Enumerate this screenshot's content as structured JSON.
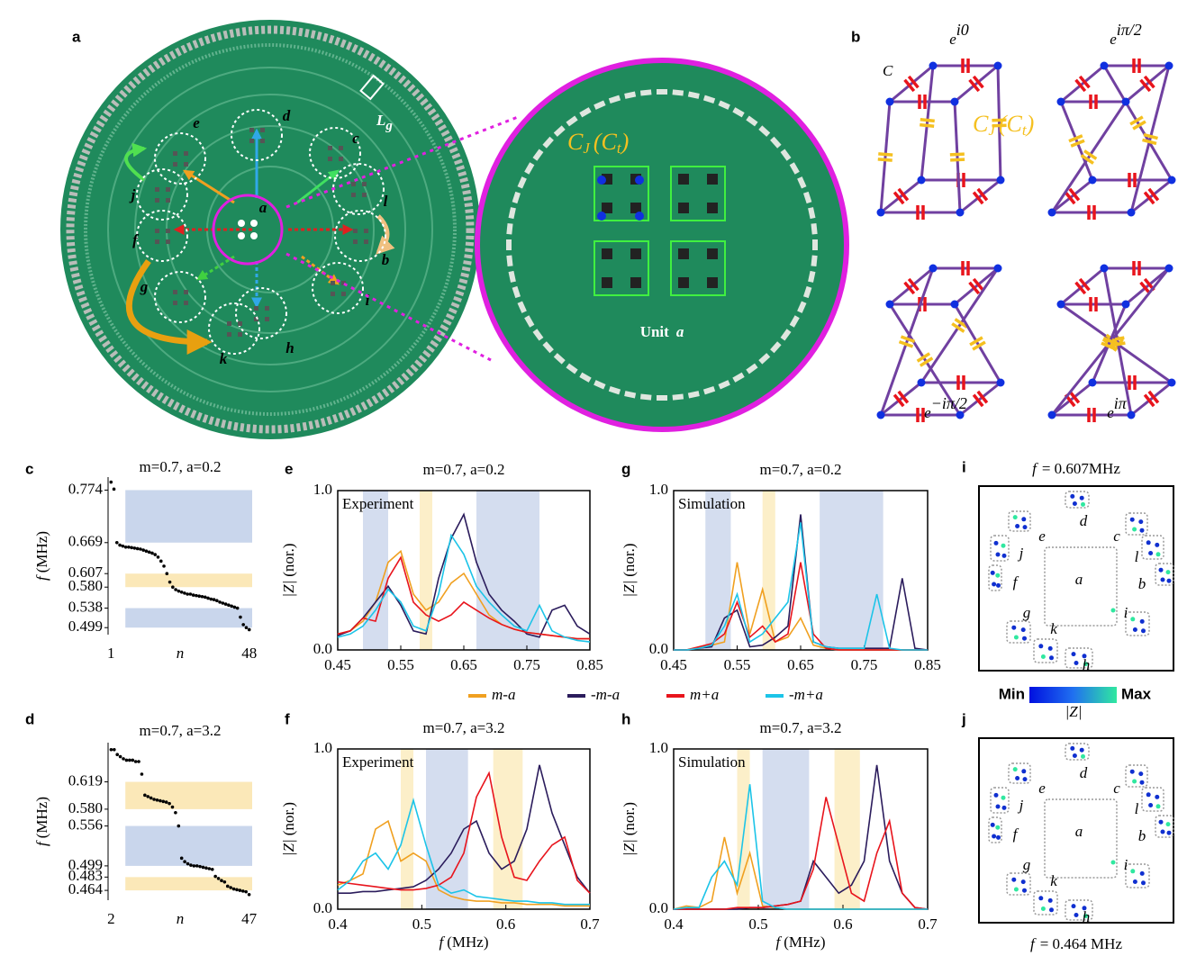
{
  "figure": {
    "panel_labels": [
      "a",
      "b",
      "i",
      "j"
    ],
    "a": {
      "units": [
        "a",
        "b",
        "c",
        "d",
        "e",
        "f",
        "g",
        "h",
        "i",
        "j",
        "k",
        "l"
      ],
      "Lg": [
        "L",
        "g"
      ],
      "unit_caption": [
        "Unit",
        "a"
      ]
    },
    "b": {
      "C": "C",
      "cap": [
        "C",
        "J",
        "(",
        "C",
        "t",
        ")"
      ],
      "phases": [
        [
          "e",
          "i0"
        ],
        [
          "e",
          "iπ/2"
        ],
        [
          "e",
          "−iπ/2"
        ],
        [
          "e",
          "iπ"
        ]
      ]
    },
    "i": {
      "title": [
        "f",
        "= 0.607MHz"
      ]
    },
    "j": {
      "title": [
        "f",
        "= 0.464 MHz"
      ]
    },
    "colorbar": {
      "min": "Min",
      "max": "Max",
      "label": "|Z|"
    }
  },
  "chart_data": [
    {
      "type": "scatter",
      "label": "c",
      "title": "m=0.7, a=0.2",
      "xlabel": "n",
      "ylabel": [
        "f",
        "(MHz)"
      ],
      "color": "#000000",
      "x": [
        1,
        2,
        3,
        4,
        5,
        6,
        7,
        8,
        9,
        10,
        11,
        12,
        13,
        14,
        15,
        16,
        17,
        18,
        19,
        20,
        21,
        22,
        23,
        24,
        25,
        26,
        27,
        28,
        29,
        30,
        31,
        32,
        33,
        34,
        35,
        36,
        37,
        38,
        39,
        40,
        41,
        42,
        43,
        44,
        45,
        46,
        47,
        48
      ],
      "values": [
        0.79,
        0.776,
        0.669,
        0.664,
        0.662,
        0.66,
        0.66,
        0.659,
        0.658,
        0.657,
        0.656,
        0.654,
        0.652,
        0.65,
        0.648,
        0.645,
        0.64,
        0.632,
        0.622,
        0.607,
        0.59,
        0.58,
        0.575,
        0.572,
        0.57,
        0.568,
        0.566,
        0.566,
        0.564,
        0.563,
        0.562,
        0.561,
        0.56,
        0.558,
        0.556,
        0.555,
        0.553,
        0.55,
        0.548,
        0.546,
        0.544,
        0.542,
        0.54,
        0.538,
        0.52,
        0.505,
        0.499,
        0.495
      ],
      "xlim": [
        0,
        49
      ],
      "xticks": [
        1,
        48
      ],
      "ylim": [
        0.485,
        0.8
      ],
      "yticks": [
        0.774,
        0.669,
        0.607,
        {
          "value": 0.58,
          "label": "0.580"
        },
        0.538,
        0.499
      ],
      "bands": [
        {
          "from": 0.669,
          "to": 0.774,
          "color": "#c9d6ec"
        },
        {
          "from": 0.58,
          "to": 0.607,
          "color": "#fbe8b8"
        },
        {
          "from": 0.499,
          "to": 0.538,
          "color": "#c9d6ec"
        }
      ]
    },
    {
      "type": "scatter",
      "label": "d",
      "title": "m=0.7, a=3.2",
      "xlabel": "n",
      "ylabel": [
        "f",
        "(MHz)"
      ],
      "color": "#000000",
      "x": [
        2,
        3,
        4,
        5,
        6,
        7,
        8,
        9,
        10,
        11,
        12,
        13,
        14,
        15,
        16,
        17,
        18,
        19,
        20,
        21,
        22,
        23,
        24,
        25,
        26,
        27,
        28,
        29,
        30,
        31,
        32,
        33,
        34,
        35,
        36,
        37,
        38,
        39,
        40,
        41,
        42,
        43,
        44,
        45,
        46,
        47
      ],
      "values": [
        0.665,
        0.665,
        0.658,
        0.655,
        0.652,
        0.65,
        0.65,
        0.65,
        0.648,
        0.648,
        0.63,
        0.6,
        0.598,
        0.596,
        0.594,
        0.593,
        0.592,
        0.591,
        0.59,
        0.588,
        0.583,
        0.575,
        0.556,
        0.51,
        0.505,
        0.502,
        0.5,
        0.499,
        0.499,
        0.498,
        0.497,
        0.496,
        0.495,
        0.494,
        0.484,
        0.481,
        0.478,
        0.476,
        0.47,
        0.468,
        0.466,
        0.465,
        0.464,
        0.463,
        0.462,
        0.458
      ],
      "xlim": [
        1,
        48
      ],
      "xticks": [
        2,
        47
      ],
      "ylim": [
        0.45,
        0.675
      ],
      "yticks": [
        0.619,
        {
          "value": 0.58,
          "label": "0.580"
        },
        0.556,
        0.499,
        0.483,
        0.464
      ],
      "bands": [
        {
          "from": 0.58,
          "to": 0.619,
          "color": "#fbe8b8"
        },
        {
          "from": 0.499,
          "to": 0.556,
          "color": "#c9d6ec"
        },
        {
          "from": 0.464,
          "to": 0.483,
          "color": "#fbe8b8"
        }
      ]
    },
    {
      "type": "line",
      "label": "e",
      "title": "m=0.7, a=0.2",
      "annotation": "Experiment",
      "ylabel": [
        "|Z|",
        "(nor.)"
      ],
      "x": [
        0.45,
        0.47,
        0.49,
        0.51,
        0.53,
        0.55,
        0.57,
        0.59,
        0.61,
        0.63,
        0.65,
        0.67,
        0.69,
        0.71,
        0.73,
        0.75,
        0.77,
        0.79,
        0.81,
        0.83,
        0.85
      ],
      "xlim": [
        0.45,
        0.85
      ],
      "xticks": [
        0.45,
        0.55,
        0.65,
        0.75,
        0.85
      ],
      "ylim": [
        0,
        1
      ],
      "yticks": [
        {
          "value": 0,
          "label": "0.0"
        },
        {
          "value": 1,
          "label": "1.0"
        }
      ],
      "bands": [
        {
          "from": 0.49,
          "to": 0.53,
          "color": "#d4ddef"
        },
        {
          "from": 0.58,
          "to": 0.6,
          "color": "#fcefc9"
        },
        {
          "from": 0.67,
          "to": 0.77,
          "color": "#d4ddef"
        }
      ],
      "series": [
        {
          "name": "m-a",
          "color": "#f0a020",
          "values": [
            0.1,
            0.12,
            0.18,
            0.3,
            0.55,
            0.62,
            0.35,
            0.25,
            0.3,
            0.42,
            0.48,
            0.35,
            0.22,
            0.16,
            0.13,
            0.11,
            0.1,
            0.09,
            0.08,
            0.07,
            0.07
          ]
        },
        {
          "name": "-m-a",
          "color": "#2b1c5c",
          "values": [
            0.09,
            0.12,
            0.2,
            0.3,
            0.4,
            0.28,
            0.12,
            0.1,
            0.45,
            0.7,
            0.85,
            0.55,
            0.35,
            0.25,
            0.18,
            0.1,
            0.08,
            0.25,
            0.28,
            0.15,
            0.1
          ]
        },
        {
          "name": "m+a",
          "color": "#e8141c",
          "values": [
            0.1,
            0.12,
            0.2,
            0.18,
            0.45,
            0.58,
            0.3,
            0.22,
            0.18,
            0.22,
            0.3,
            0.25,
            0.2,
            0.16,
            0.13,
            0.11,
            0.1,
            0.09,
            0.08,
            0.07,
            0.07
          ]
        },
        {
          "name": "-m+a",
          "color": "#1cc4e8",
          "values": [
            0.08,
            0.1,
            0.15,
            0.25,
            0.38,
            0.3,
            0.15,
            0.12,
            0.35,
            0.72,
            0.6,
            0.4,
            0.3,
            0.22,
            0.15,
            0.12,
            0.28,
            0.12,
            0.08,
            0.06,
            0.05
          ]
        }
      ]
    },
    {
      "type": "line",
      "label": "f",
      "title": "m=0.7, a=3.2",
      "annotation": "Experiment",
      "ylabel": [
        "|Z|",
        "(nor.)"
      ],
      "xlabel": [
        "f",
        "(MHz)"
      ],
      "x": [
        0.4,
        0.415,
        0.43,
        0.445,
        0.46,
        0.475,
        0.49,
        0.505,
        0.52,
        0.535,
        0.55,
        0.565,
        0.58,
        0.595,
        0.61,
        0.625,
        0.64,
        0.655,
        0.67,
        0.685,
        0.7
      ],
      "xlim": [
        0.4,
        0.7
      ],
      "xticks": [
        0.4,
        0.5,
        0.6,
        0.7
      ],
      "ylim": [
        0,
        1
      ],
      "yticks": [
        {
          "value": 0,
          "label": "0.0"
        },
        {
          "value": 1,
          "label": "1.0"
        }
      ],
      "bands": [
        {
          "from": 0.475,
          "to": 0.49,
          "color": "#fcefc9"
        },
        {
          "from": 0.505,
          "to": 0.555,
          "color": "#d4ddef"
        },
        {
          "from": 0.585,
          "to": 0.62,
          "color": "#fcefc9"
        }
      ],
      "series": [
        {
          "color": "#f0a020",
          "values": [
            0.15,
            0.18,
            0.22,
            0.5,
            0.55,
            0.3,
            0.35,
            0.3,
            0.12,
            0.08,
            0.06,
            0.05,
            0.05,
            0.04,
            0.04,
            0.03,
            0.03,
            0.03,
            0.02,
            0.02,
            0.02
          ]
        },
        {
          "color": "#2b1c5c",
          "values": [
            0.1,
            0.1,
            0.11,
            0.11,
            0.12,
            0.13,
            0.14,
            0.18,
            0.25,
            0.35,
            0.5,
            0.55,
            0.35,
            0.25,
            0.3,
            0.5,
            0.9,
            0.6,
            0.4,
            0.2,
            0.1
          ]
        },
        {
          "color": "#e8141c",
          "values": [
            0.17,
            0.16,
            0.15,
            0.14,
            0.13,
            0.12,
            0.12,
            0.13,
            0.15,
            0.2,
            0.35,
            0.7,
            0.85,
            0.45,
            0.2,
            0.18,
            0.3,
            0.4,
            0.45,
            0.18,
            0.1
          ]
        },
        {
          "color": "#1cc4e8",
          "values": [
            0.12,
            0.18,
            0.3,
            0.35,
            0.25,
            0.4,
            0.68,
            0.4,
            0.15,
            0.1,
            0.12,
            0.08,
            0.07,
            0.06,
            0.05,
            0.05,
            0.04,
            0.04,
            0.03,
            0.03,
            0.03
          ]
        }
      ]
    },
    {
      "type": "line",
      "label": "g",
      "title": "m=0.7, a=0.2",
      "annotation": "Simulation",
      "ylabel": [
        "|Z|",
        "(nor.)"
      ],
      "x": [
        0.45,
        0.47,
        0.49,
        0.51,
        0.53,
        0.55,
        0.57,
        0.59,
        0.61,
        0.63,
        0.65,
        0.67,
        0.69,
        0.71,
        0.73,
        0.75,
        0.77,
        0.79,
        0.81,
        0.83,
        0.85
      ],
      "xlim": [
        0.45,
        0.85
      ],
      "xticks": [
        0.45,
        0.55,
        0.65,
        0.75,
        0.85
      ],
      "ylim": [
        0,
        1
      ],
      "yticks": [
        {
          "value": 0,
          "label": "0.0"
        },
        {
          "value": 1,
          "label": "1.0"
        }
      ],
      "bands": [
        {
          "from": 0.5,
          "to": 0.54,
          "color": "#d4ddef"
        },
        {
          "from": 0.59,
          "to": 0.61,
          "color": "#fcefc9"
        },
        {
          "from": 0.68,
          "to": 0.78,
          "color": "#d4ddef"
        }
      ],
      "series": [
        {
          "color": "#f0a020",
          "values": [
            0,
            0,
            0.02,
            0.03,
            0.05,
            0.55,
            0.1,
            0.38,
            0.05,
            0.08,
            0.2,
            0.03,
            0.01,
            0,
            0,
            0,
            0,
            0,
            0,
            0,
            0
          ]
        },
        {
          "color": "#2b1c5c",
          "values": [
            0,
            0,
            0.01,
            0.02,
            0.2,
            0.25,
            0.02,
            0.03,
            0.08,
            0.15,
            0.85,
            0.05,
            0.02,
            0.01,
            0.01,
            0.01,
            0.01,
            0.01,
            0.45,
            0.01,
            0
          ]
        },
        {
          "color": "#e8141c",
          "values": [
            0,
            0,
            0.02,
            0.04,
            0.1,
            0.3,
            0.08,
            0.15,
            0.05,
            0.1,
            0.55,
            0.1,
            0.01,
            0,
            0,
            0,
            0,
            0,
            0,
            0,
            0
          ]
        },
        {
          "color": "#1cc4e8",
          "values": [
            0,
            0,
            0.01,
            0.03,
            0.15,
            0.35,
            0.05,
            0.1,
            0.2,
            0.3,
            0.8,
            0.05,
            0.02,
            0.01,
            0.01,
            0.01,
            0.35,
            0.01,
            0,
            0,
            0
          ]
        }
      ]
    },
    {
      "type": "line",
      "label": "h",
      "title": "m=0.7, a=3.2",
      "annotation": "Simulation",
      "ylabel": [
        "|Z|",
        "(nor.)"
      ],
      "xlabel": [
        "f",
        "(MHz)"
      ],
      "x": [
        0.4,
        0.415,
        0.43,
        0.445,
        0.46,
        0.475,
        0.49,
        0.505,
        0.52,
        0.535,
        0.55,
        0.565,
        0.58,
        0.595,
        0.61,
        0.625,
        0.64,
        0.655,
        0.67,
        0.685,
        0.7
      ],
      "xlim": [
        0.4,
        0.7
      ],
      "xticks": [
        0.4,
        0.5,
        0.6,
        0.7
      ],
      "ylim": [
        0,
        1
      ],
      "yticks": [
        {
          "value": 0,
          "label": "0.0"
        },
        {
          "value": 1,
          "label": "1.0"
        }
      ],
      "bands": [
        {
          "from": 0.475,
          "to": 0.49,
          "color": "#fcefc9"
        },
        {
          "from": 0.505,
          "to": 0.56,
          "color": "#d4ddef"
        },
        {
          "from": 0.59,
          "to": 0.62,
          "color": "#fcefc9"
        }
      ],
      "series": [
        {
          "color": "#f0a020",
          "values": [
            0,
            0.02,
            0.01,
            0.05,
            0.45,
            0.1,
            0.35,
            0.02,
            0.01,
            0,
            0,
            0,
            0,
            0,
            0,
            0,
            0,
            0,
            0,
            0,
            0
          ]
        },
        {
          "color": "#2b1c5c",
          "values": [
            0,
            0,
            0,
            0,
            0,
            0,
            0.01,
            0.01,
            0.02,
            0.03,
            0.05,
            0.3,
            0.2,
            0.1,
            0.15,
            0.3,
            0.9,
            0.3,
            0.1,
            0.01,
            0
          ]
        },
        {
          "color": "#e8141c",
          "values": [
            0,
            0,
            0,
            0,
            0,
            0.01,
            0.01,
            0.01,
            0.02,
            0.03,
            0.05,
            0.25,
            0.7,
            0.4,
            0.1,
            0.05,
            0.35,
            0.55,
            0.1,
            0.01,
            0
          ]
        },
        {
          "color": "#1cc4e8",
          "values": [
            0,
            0.01,
            0.01,
            0.2,
            0.3,
            0.15,
            0.78,
            0.05,
            0.01,
            0,
            0,
            0,
            0,
            0,
            0,
            0,
            0,
            0,
            0,
            0,
            0
          ]
        }
      ]
    }
  ]
}
